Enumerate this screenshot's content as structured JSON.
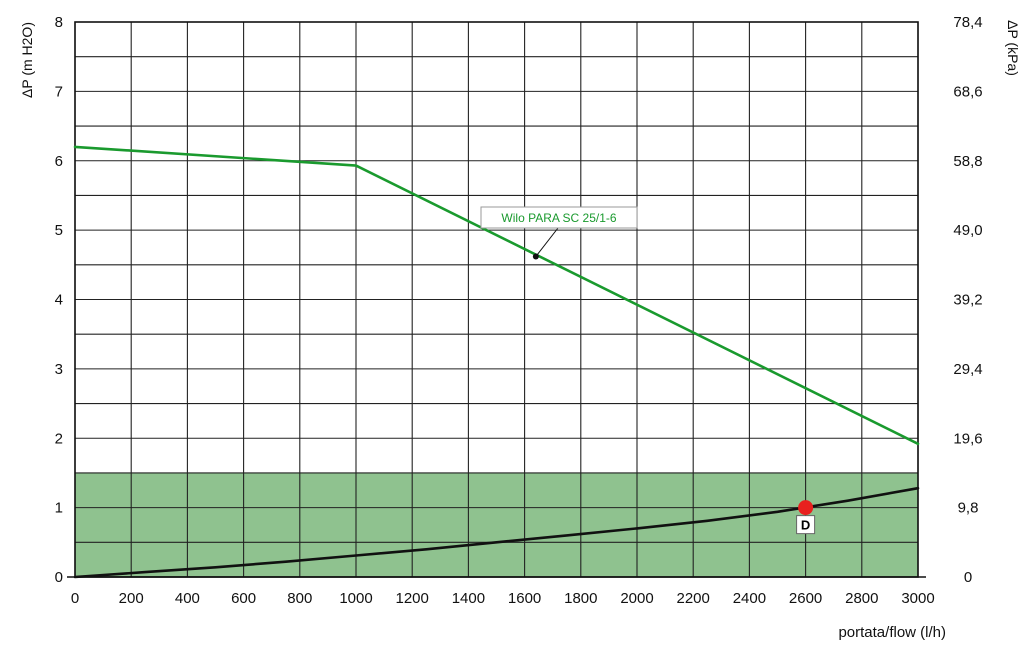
{
  "chart_data": {
    "type": "line",
    "title": "",
    "xlabel": "portata/flow (l/h)",
    "ylabel_left": "ΔP (m H2O)",
    "ylabel_right": "ΔP (kPa)",
    "xlim": [
      0,
      3000
    ],
    "ylim": [
      0,
      8
    ],
    "grid": true,
    "x_ticks": [
      "0",
      "200",
      "400",
      "600",
      "800",
      "1000",
      "1200",
      "1400",
      "1600",
      "1800",
      "2000",
      "2200",
      "2400",
      "2600",
      "2800",
      "3000"
    ],
    "y_ticks_left": [
      "0",
      "1",
      "2",
      "3",
      "4",
      "5",
      "6",
      "7",
      "8"
    ],
    "y_ticks_right": [
      "0",
      "9,8",
      "19,6",
      "29,4",
      "39,2",
      "49,0",
      "58,8",
      "68,6",
      "78,4"
    ],
    "shaded_region": {
      "y_from": 0,
      "y_to": 1.5,
      "color": "#8fc28f"
    },
    "series": [
      {
        "name": "Wilo PARA SC 25/1-6",
        "color": "#1a9a2e",
        "x": [
          0,
          1000,
          3000
        ],
        "y": [
          6.2,
          5.93,
          1.92
        ]
      },
      {
        "name": "",
        "color": "#111111",
        "x": [
          0,
          250,
          500,
          750,
          1000,
          1250,
          1500,
          1750,
          2000,
          2250,
          2500,
          2750,
          3000
        ],
        "y": [
          0,
          0.07,
          0.14,
          0.22,
          0.31,
          0.4,
          0.5,
          0.6,
          0.7,
          0.81,
          0.94,
          1.1,
          1.28
        ]
      }
    ],
    "annotations": [
      {
        "text": "Wilo PARA SC 25/1-6",
        "point_x": 1640,
        "point_y": 4.62
      }
    ],
    "markers": [
      {
        "label": "D",
        "x": 2600,
        "y": 1.0,
        "color": "#e8201e"
      }
    ]
  }
}
